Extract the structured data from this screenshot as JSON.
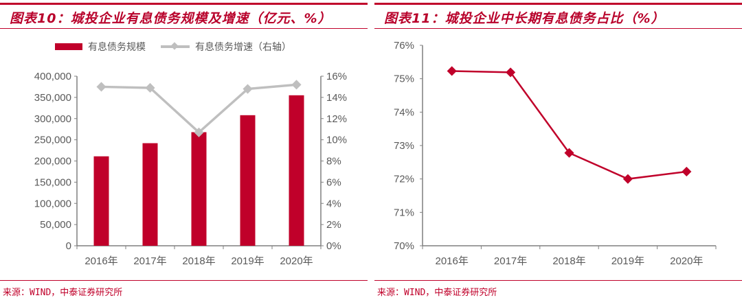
{
  "left": {
    "title": "图表10：城投企业有息债务规模及增速（亿元、%）",
    "source": "来源：WIND，中泰证券研究所"
  },
  "right": {
    "title": "图表11：城投企业中长期有息债务占比（%）",
    "source": "来源：WIND，中泰证券研究所"
  },
  "chart_data": [
    {
      "type": "bar",
      "categories": [
        "2016年",
        "2017年",
        "2018年",
        "2019年",
        "2020年"
      ],
      "series": [
        {
          "name": "有息债务规模",
          "type": "bar",
          "axis": "left",
          "color": "#c0002a",
          "values": [
            211000,
            242000,
            268000,
            308000,
            355000
          ]
        },
        {
          "name": "有息债务增速（右轴）",
          "type": "line",
          "axis": "right",
          "color": "#bfbfbf",
          "values": [
            15.0,
            14.9,
            10.7,
            14.8,
            15.2
          ]
        }
      ],
      "ylim": [
        0,
        400000
      ],
      "yticks": [
        "0",
        "50,000",
        "100,000",
        "150,000",
        "200,000",
        "250,000",
        "300,000",
        "350,000",
        "400,000"
      ],
      "y2lim": [
        0,
        16
      ],
      "y2ticks": [
        "0%",
        "2%",
        "4%",
        "6%",
        "8%",
        "10%",
        "12%",
        "14%",
        "16%"
      ],
      "legend": "top",
      "grid": false
    },
    {
      "type": "line",
      "categories": [
        "2016年",
        "2017年",
        "2018年",
        "2019年",
        "2020年"
      ],
      "series": [
        {
          "color": "#c0002a",
          "values": [
            75.23,
            75.19,
            72.78,
            72.0,
            72.22
          ]
        }
      ],
      "ylim": [
        70,
        76
      ],
      "yticks": [
        "70%",
        "71%",
        "72%",
        "73%",
        "74%",
        "75%",
        "76%"
      ],
      "grid": false
    }
  ]
}
